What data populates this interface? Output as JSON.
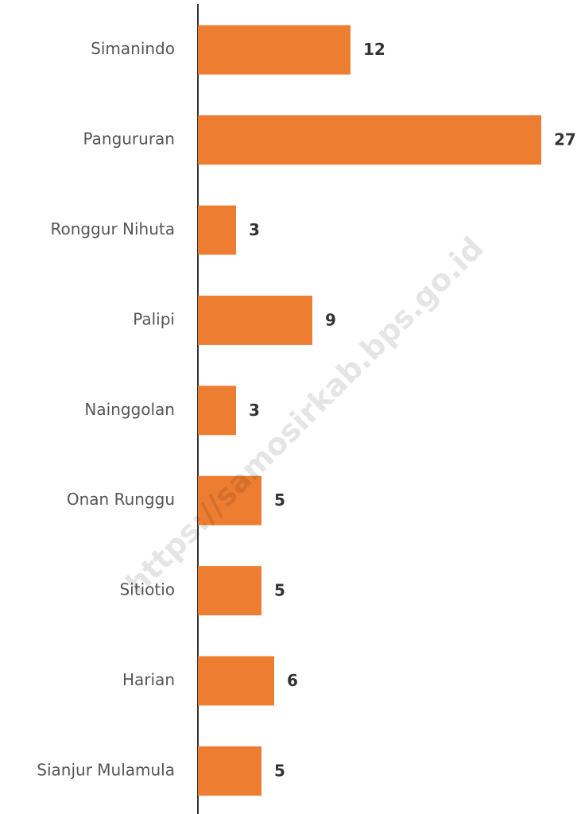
{
  "chart_data": {
    "type": "barh",
    "categories": [
      "Simanindo",
      "Pangururan",
      "Ronggur Nihuta",
      "Palipi",
      "Nainggolan",
      "Onan Runggu",
      "Sitiotio",
      "Harian",
      "Sianjur Mulamula"
    ],
    "values": [
      12,
      27,
      3,
      9,
      3,
      5,
      5,
      6,
      5
    ],
    "color": "#ed7d31",
    "watermark": "https://samosirkab.bps.go.id"
  }
}
